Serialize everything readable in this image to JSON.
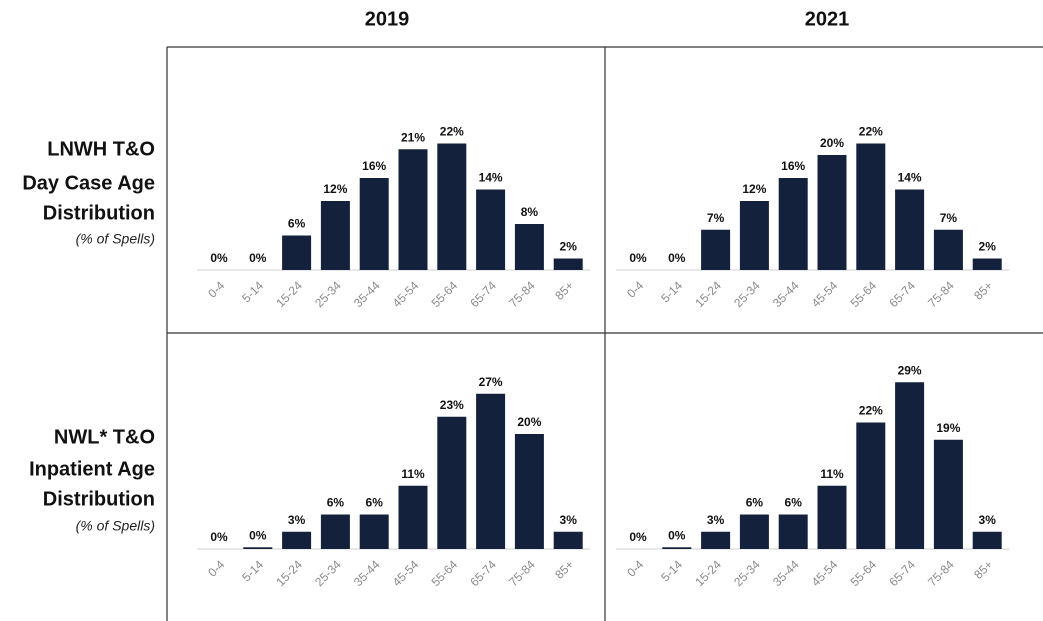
{
  "columns": [
    "2019",
    "2021"
  ],
  "rows": [
    {
      "title": [
        "LNWH T&O",
        "Day Case Age",
        "Distribution"
      ],
      "subtitle": "(% of Spells)"
    },
    {
      "title": [
        "NWL* T&O",
        "Inpatient Age",
        "Distribution"
      ],
      "subtitle": "(% of Spells)"
    }
  ],
  "chart_data": [
    {
      "type": "bar",
      "color": "#13213d",
      "categories": [
        "0-4",
        "5-14",
        "15-24",
        "25-34",
        "35-44",
        "45-54",
        "55-64",
        "65-74",
        "75-84",
        "85+"
      ],
      "values": [
        0,
        0,
        6,
        12,
        16,
        21,
        22,
        14,
        8,
        2
      ],
      "value_labels": [
        "0%",
        "0%",
        "6%",
        "12%",
        "16%",
        "21%",
        "22%",
        "14%",
        "8%",
        "2%"
      ]
    },
    {
      "type": "bar",
      "color": "#13213d",
      "categories": [
        "0-4",
        "5-14",
        "15-24",
        "25-34",
        "35-44",
        "45-54",
        "55-64",
        "65-74",
        "75-84",
        "85+"
      ],
      "values": [
        0,
        0,
        7,
        12,
        16,
        20,
        22,
        14,
        7,
        2
      ],
      "value_labels": [
        "0%",
        "0%",
        "7%",
        "12%",
        "16%",
        "20%",
        "22%",
        "14%",
        "7%",
        "2%"
      ]
    },
    {
      "type": "bar",
      "color": "#13213d",
      "categories": [
        "0-4",
        "5-14",
        "15-24",
        "25-34",
        "35-44",
        "45-54",
        "55-64",
        "65-74",
        "75-84",
        "85+"
      ],
      "values": [
        0,
        0.3,
        3,
        6,
        6,
        11,
        23,
        27,
        20,
        3
      ],
      "value_labels": [
        "0%",
        "0%",
        "3%",
        "6%",
        "6%",
        "11%",
        "23%",
        "27%",
        "20%",
        "3%"
      ]
    },
    {
      "type": "bar",
      "color": "#13213d",
      "categories": [
        "0-4",
        "5-14",
        "15-24",
        "25-34",
        "35-44",
        "45-54",
        "55-64",
        "65-74",
        "75-84",
        "85+"
      ],
      "values": [
        0,
        0.3,
        3,
        6,
        6,
        11,
        22,
        29,
        19,
        3
      ],
      "value_labels": [
        "0%",
        "0%",
        "3%",
        "6%",
        "6%",
        "11%",
        "22%",
        "29%",
        "19%",
        "3%"
      ]
    }
  ]
}
